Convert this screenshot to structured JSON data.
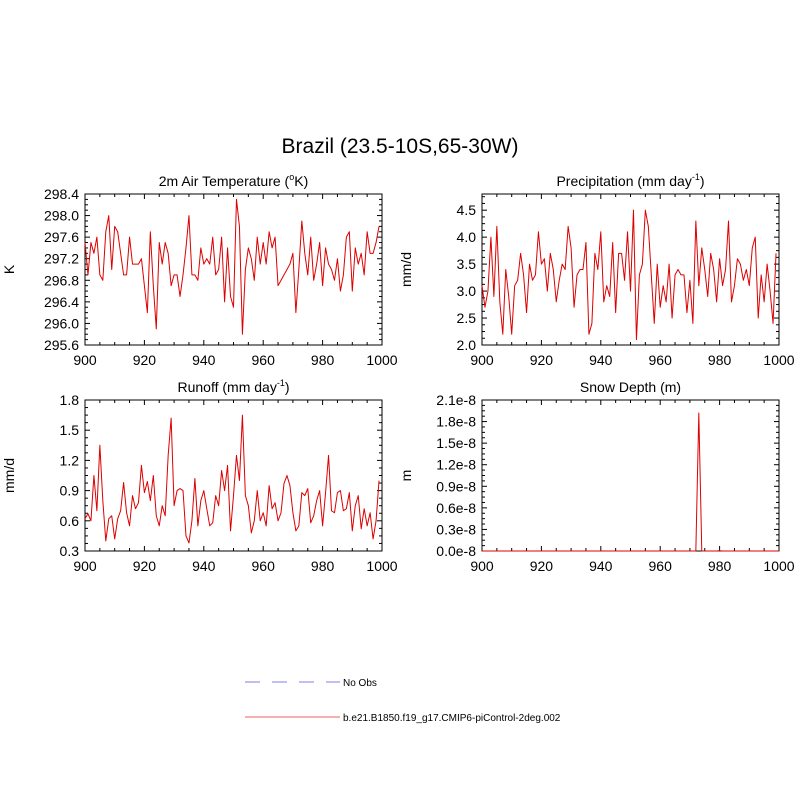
{
  "figure": {
    "title": "Brazil (23.5-10S,65-30W)"
  },
  "legend": {
    "entries": [
      {
        "label": "No Obs",
        "color": "#9999ee",
        "style": "dashed"
      },
      {
        "label": "b.e21.B1850.f19_g17.CMIP6-piControl-2deg.002",
        "color": "#f08080",
        "style": "solid"
      }
    ]
  },
  "chart_data": [
    {
      "type": "line",
      "title": "2m Air Temperature (°K)",
      "title_parts": [
        "2m Air Temperature (",
        "o",
        "K)"
      ],
      "ylabel": "K",
      "xlabel": "",
      "xlim": [
        900,
        1000
      ],
      "ylim": [
        295.6,
        298.4
      ],
      "xticks": [
        900,
        920,
        940,
        960,
        980,
        1000
      ],
      "yticks": [
        "295.6",
        "296.0",
        "296.4",
        "296.8",
        "297.2",
        "297.6",
        "298.0",
        "298.4"
      ],
      "series": [
        {
          "name": "b.e21.B1850.f19_g17.CMIP6-piControl-2deg.002",
          "color": "#dd0000",
          "x_start": 900,
          "x_step": 1,
          "values": [
            297.5,
            296.9,
            297.5,
            297.3,
            297.6,
            296.9,
            296.8,
            297.7,
            298.0,
            297.0,
            297.8,
            297.7,
            297.3,
            296.9,
            296.9,
            297.6,
            297.1,
            297.1,
            297.1,
            297.2,
            296.7,
            296.2,
            297.7,
            296.7,
            295.9,
            297.5,
            297.1,
            297.5,
            297.3,
            296.7,
            296.9,
            296.9,
            296.5,
            296.9,
            297.4,
            298.0,
            296.9,
            296.9,
            296.8,
            297.4,
            297.1,
            297.2,
            297.1,
            297.6,
            296.9,
            297.0,
            297.6,
            296.4,
            297.4,
            296.5,
            296.3,
            298.3,
            297.8,
            295.8,
            297.0,
            297.4,
            297.2,
            296.8,
            297.6,
            297.1,
            297.5,
            297.1,
            297.7,
            297.4,
            297.6,
            296.7,
            296.8,
            296.9,
            297.0,
            297.1,
            297.3,
            296.2,
            297.0,
            297.9,
            297.3,
            296.9,
            297.6,
            296.8,
            297.1,
            297.5,
            296.7,
            297.4,
            297.1,
            297.0,
            296.8,
            297.2,
            296.6,
            296.9,
            297.6,
            297.7,
            296.6,
            297.4,
            297.1,
            297.3,
            296.9,
            297.7,
            297.3,
            297.3,
            297.5,
            297.8
          ]
        }
      ]
    },
    {
      "type": "line",
      "title": "Precipitation (mm day-1)",
      "title_parts": [
        "Precipitation (mm day",
        "-1",
        ")"
      ],
      "ylabel": "mm/d",
      "xlabel": "",
      "xlim": [
        900,
        1000
      ],
      "ylim": [
        2.0,
        4.8
      ],
      "xticks": [
        900,
        920,
        940,
        960,
        980,
        1000
      ],
      "yticks": [
        "2.0",
        "2.5",
        "3.0",
        "3.5",
        "4.0",
        "4.5"
      ],
      "series": [
        {
          "name": "b.e21.B1850.f19_g17.CMIP6-piControl-2deg.002",
          "color": "#dd0000",
          "x_start": 900,
          "x_step": 1,
          "values": [
            3.1,
            2.7,
            3.0,
            4.0,
            2.9,
            4.2,
            2.8,
            2.2,
            3.4,
            2.9,
            2.2,
            3.1,
            3.2,
            3.7,
            3.3,
            2.6,
            3.5,
            3.2,
            3.3,
            4.1,
            3.5,
            3.6,
            3.0,
            3.7,
            3.4,
            2.8,
            3.2,
            3.5,
            3.4,
            4.2,
            3.8,
            2.7,
            3.3,
            3.4,
            3.4,
            3.9,
            2.2,
            2.4,
            3.7,
            3.4,
            4.1,
            2.8,
            3.1,
            2.9,
            3.9,
            2.6,
            3.7,
            3.7,
            3.2,
            4.1,
            3.0,
            4.5,
            2.1,
            3.3,
            3.5,
            4.5,
            4.2,
            3.3,
            2.4,
            3.5,
            2.7,
            3.1,
            2.8,
            3.5,
            2.5,
            3.3,
            3.4,
            3.3,
            3.3,
            2.6,
            3.2,
            2.4,
            4.3,
            3.1,
            3.8,
            3.4,
            2.9,
            3.7,
            3.4,
            2.8,
            3.6,
            3.1,
            3.4,
            4.3,
            2.8,
            3.1,
            3.6,
            3.5,
            3.2,
            3.4,
            3.1,
            3.8,
            4.0,
            2.5,
            3.3,
            2.8,
            3.5,
            3.0,
            2.4,
            3.7
          ]
        }
      ]
    },
    {
      "type": "line",
      "title": "Runoff (mm day-1)",
      "title_parts": [
        "Runoff (mm day",
        "-1",
        ")"
      ],
      "ylabel": "mm/d",
      "xlabel": "",
      "xlim": [
        900,
        1000
      ],
      "ylim": [
        0.3,
        1.8
      ],
      "xticks": [
        900,
        920,
        940,
        960,
        980,
        1000
      ],
      "yticks": [
        "0.3",
        "0.6",
        "0.9",
        "1.2",
        "1.5",
        "1.8"
      ],
      "series": [
        {
          "name": "b.e21.B1850.f19_g17.CMIP6-piControl-2deg.002",
          "color": "#dd0000",
          "x_start": 900,
          "x_step": 1,
          "values": [
            0.62,
            0.67,
            0.6,
            1.05,
            0.7,
            1.35,
            0.8,
            0.4,
            0.62,
            0.65,
            0.42,
            0.62,
            0.7,
            0.98,
            0.68,
            0.55,
            0.85,
            0.72,
            0.78,
            1.15,
            0.88,
            0.99,
            0.8,
            1.05,
            0.65,
            0.55,
            0.75,
            0.65,
            1.25,
            1.62,
            0.75,
            0.9,
            0.92,
            0.9,
            0.45,
            0.38,
            0.6,
            1.02,
            0.55,
            0.8,
            0.9,
            0.72,
            0.55,
            0.58,
            0.85,
            0.75,
            1.1,
            0.9,
            1.15,
            0.5,
            0.85,
            1.25,
            1.0,
            1.65,
            0.85,
            0.75,
            0.48,
            0.6,
            0.9,
            0.6,
            0.68,
            0.55,
            0.95,
            0.72,
            0.78,
            0.6,
            0.68,
            0.97,
            1.05,
            0.95,
            0.68,
            0.5,
            0.55,
            0.88,
            0.85,
            0.92,
            0.58,
            0.65,
            0.8,
            0.9,
            0.55,
            0.88,
            1.25,
            0.7,
            0.68,
            0.88,
            0.9,
            0.7,
            0.72,
            0.88,
            0.5,
            0.75,
            0.85,
            0.52,
            0.72,
            0.55,
            0.68,
            0.42,
            0.6,
            1.0
          ]
        }
      ]
    },
    {
      "type": "line",
      "title": "Snow Depth (m)",
      "title_parts": [
        "Snow Depth (m)"
      ],
      "ylabel": "m",
      "xlabel": "",
      "xlim": [
        900,
        1000
      ],
      "ylim": [
        0.0,
        2.1e-08
      ],
      "xticks": [
        900,
        920,
        940,
        960,
        980,
        1000
      ],
      "yticks": [
        "0.0e-8",
        "0.3e-8",
        "0.6e-8",
        "0.9e-8",
        "1.2e-8",
        "1.5e-8",
        "1.8e-8",
        "2.1e-8"
      ],
      "series": [
        {
          "name": "b.e21.B1850.f19_g17.CMIP6-piControl-2deg.002",
          "color": "#dd0000",
          "x_start": 900,
          "x_step": 1,
          "values": [
            0,
            0,
            0,
            0,
            0,
            0,
            0,
            0,
            0,
            0,
            0,
            0,
            0,
            0,
            0,
            0,
            0,
            0,
            0,
            0,
            0,
            0,
            0,
            0,
            0,
            0,
            0,
            0,
            0,
            0,
            0,
            0,
            0,
            0,
            0,
            0,
            0,
            0,
            0,
            0,
            0,
            0,
            0,
            0,
            0,
            0,
            0,
            0,
            0,
            0,
            0,
            0,
            0,
            0,
            0,
            0,
            0,
            0,
            0,
            0,
            0,
            0,
            0,
            0,
            0,
            0,
            0,
            0,
            0,
            0,
            0,
            0,
            0,
            1.92e-08,
            0,
            0,
            0,
            0,
            0,
            0,
            3e-11,
            0,
            0,
            0,
            0,
            0,
            0,
            0,
            0,
            0,
            0,
            0,
            0,
            0,
            0,
            0,
            0,
            0,
            0,
            0,
            0
          ]
        }
      ]
    }
  ]
}
